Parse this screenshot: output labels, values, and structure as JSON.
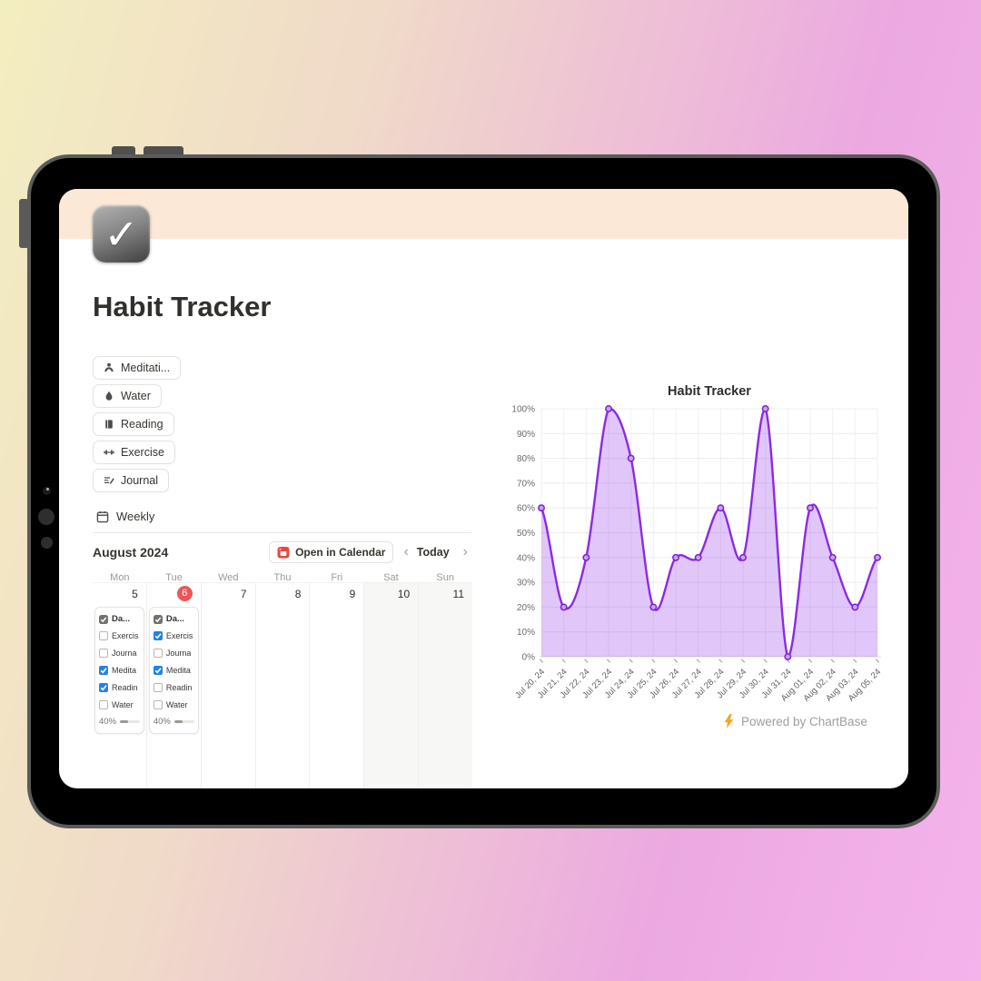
{
  "header": {
    "icon": "check-emoji-icon",
    "title": "Habit Tracker"
  },
  "tags": [
    {
      "icon": "meditation-icon",
      "label": "Meditati..."
    },
    {
      "icon": "water-drop-icon",
      "label": "Water"
    },
    {
      "icon": "book-icon",
      "label": "Reading"
    },
    {
      "icon": "dumbbell-icon",
      "label": "Exercise"
    },
    {
      "icon": "journal-icon",
      "label": "Journal"
    }
  ],
  "view_toggle": {
    "icon": "calendar-icon",
    "label": "Weekly"
  },
  "calendar": {
    "month_label": "August 2024",
    "open_in_calendar": {
      "icon": "red-calendar-icon",
      "label": "Open in Calendar"
    },
    "prev_icon": "‹",
    "today_label": "Today",
    "next_icon": "›",
    "weekdays": [
      "Mon",
      "Tue",
      "Wed",
      "Thu",
      "Fri",
      "Sat",
      "Sun"
    ],
    "today_badge_color": "#eb5757",
    "checkbox_color": "#2383e2",
    "days": [
      {
        "date": "5",
        "weekend": false,
        "today": false,
        "card": {
          "title": "Da...",
          "title_icon": "checked-task-icon",
          "items": [
            {
              "label": "Exercis",
              "checked": false
            },
            {
              "label": "Journa",
              "checked": false
            },
            {
              "label": "Medita",
              "checked": true
            },
            {
              "label": "Readin",
              "checked": true
            },
            {
              "label": "Water",
              "checked": false
            }
          ],
          "progress_label": "40%",
          "progress_pct": 40
        }
      },
      {
        "date": "6",
        "weekend": false,
        "today": true,
        "card": {
          "title": "Da...",
          "title_icon": "checked-task-icon",
          "items": [
            {
              "label": "Exercis",
              "checked": true
            },
            {
              "label": "Journa",
              "checked": false
            },
            {
              "label": "Medita",
              "checked": true
            },
            {
              "label": "Readin",
              "checked": false
            },
            {
              "label": "Water",
              "checked": false
            }
          ],
          "progress_label": "40%",
          "progress_pct": 40
        }
      },
      {
        "date": "7",
        "weekend": false,
        "today": false
      },
      {
        "date": "8",
        "weekend": false,
        "today": false
      },
      {
        "date": "9",
        "weekend": false,
        "today": false
      },
      {
        "date": "10",
        "weekend": true,
        "today": false
      },
      {
        "date": "11",
        "weekend": true,
        "today": false
      }
    ]
  },
  "chart_data": {
    "type": "area",
    "title": "Habit Tracker",
    "x": [
      "Jul 20, 24",
      "Jul 21, 24",
      "Jul 22, 24",
      "Jul 23, 24",
      "Jul 24, 24",
      "Jul 25, 24",
      "Jul 26, 24",
      "Jul 27, 24",
      "Jul 28, 24",
      "Jul 29, 24",
      "Jul 30, 24",
      "Jul 31, 24",
      "Aug 01, 24",
      "Aug 02, 24",
      "Aug 03, 24",
      "Aug 05, 24"
    ],
    "values": [
      60,
      20,
      40,
      100,
      80,
      20,
      40,
      40,
      60,
      40,
      100,
      0,
      60,
      40,
      20,
      40
    ],
    "xlabel": "",
    "ylabel": "",
    "ylim": [
      0,
      100
    ],
    "ytick_step": 10,
    "yticks": [
      "0%",
      "10%",
      "20%",
      "30%",
      "40%",
      "50%",
      "60%",
      "70%",
      "80%",
      "90%",
      "100%"
    ],
    "grid": true,
    "legend": false,
    "line_color": "#8b2be2",
    "fill_color": "rgba(147,51,234,0.28)",
    "marker_stroke": "#7d1fd8",
    "marker_fill": "#c9a2f0"
  },
  "attribution": {
    "icon": "lightning-icon",
    "text": "Powered by ChartBase"
  }
}
